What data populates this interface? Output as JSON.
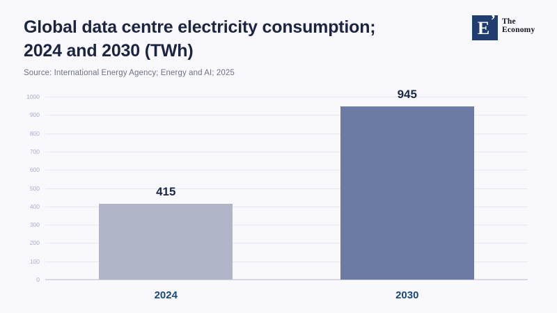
{
  "header": {
    "title_line1": "Global data centre electricity consumption;",
    "title_line2": "2024 and 2030 (TWh)",
    "source": "Source: International Energy Agency; Energy and AI; 2025"
  },
  "logo": {
    "monogram": "E",
    "mark": "’",
    "name_line1": "The",
    "name_line2": "Economy",
    "square_color": "#1f3d6f"
  },
  "colors": {
    "background": "#f9f8fd",
    "title": "#1b2441",
    "source": "#6e7284",
    "grid": "#e7e7ee",
    "baseline": "#d8d9df",
    "ytick_label": "#a9aec9"
  },
  "chart_data": {
    "type": "bar",
    "title": "Global data centre electricity consumption; 2024 and 2030 (TWh)",
    "source": "Source: International Energy Agency; Energy and AI; 2025",
    "categories": [
      "2024",
      "2030"
    ],
    "values": [
      415,
      945
    ],
    "bar_colors": [
      "#b0b6c8",
      "#6b7ba3"
    ],
    "value_label_color": "#1a2944",
    "category_label_color": "#17497f",
    "xlabel": "",
    "ylabel": "",
    "ylim": [
      0,
      1000
    ],
    "yticks": [
      0,
      100,
      200,
      300,
      400,
      500,
      600,
      700,
      800,
      900,
      1000
    ],
    "grid": true,
    "legend": false
  }
}
